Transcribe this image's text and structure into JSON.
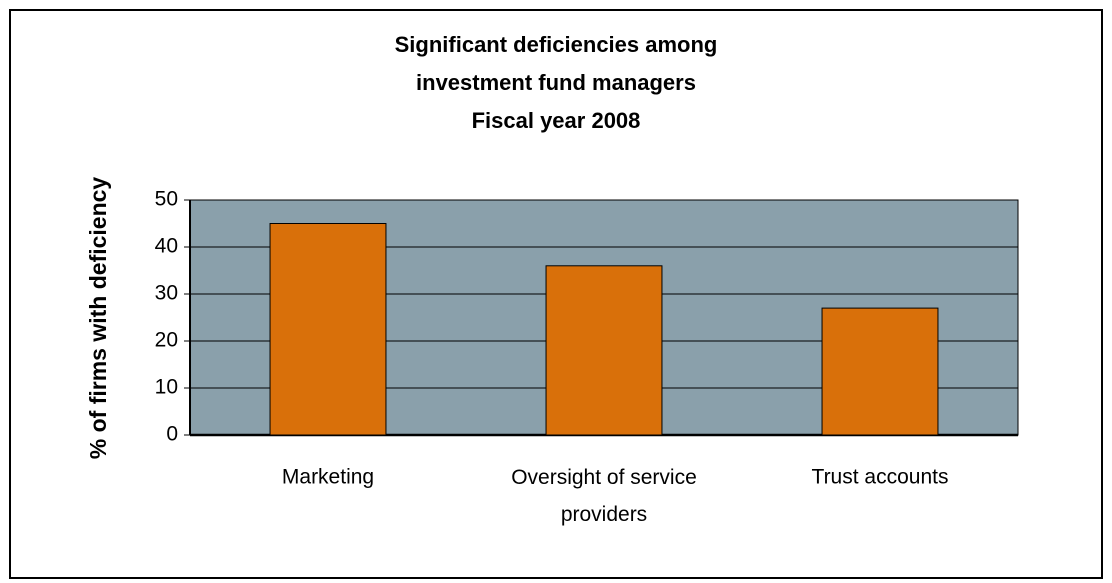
{
  "chart_data": {
    "type": "bar",
    "title": [
      "Significant deficiencies among",
      "investment fund managers",
      "Fiscal year 2008"
    ],
    "y_label": "% of firms with deficiency",
    "categories": [
      "Marketing",
      "Oversight of service providers",
      "Trust accounts"
    ],
    "values": [
      45,
      36,
      27
    ],
    "color": "#d9700a",
    "plot_background": "#8aa0ab",
    "ylim": [
      0,
      50
    ],
    "yticks": [
      0,
      10,
      20,
      30,
      40,
      50
    ],
    "grid": true
  }
}
